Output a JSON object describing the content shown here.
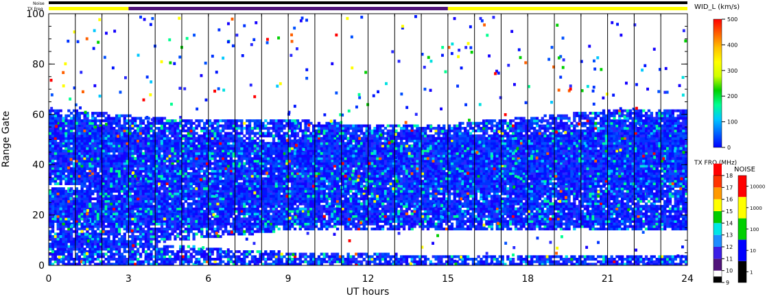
{
  "chart_data": {
    "type": "heatmap",
    "xlabel": "UT hours",
    "ylabel": "Range Gate",
    "xlim": [
      0,
      24
    ],
    "ylim": [
      0,
      100
    ],
    "x_ticks": [
      "0",
      "3",
      "6",
      "9",
      "12",
      "15",
      "18",
      "21",
      "24"
    ],
    "y_ticks": [
      "0",
      "20",
      "40",
      "60",
      "80",
      "100"
    ],
    "minor_ticks": {
      "x_step": 1,
      "y_step": 5
    },
    "vertical_marker_hours": [
      1,
      2,
      3,
      4,
      5,
      6,
      7,
      8,
      9,
      10,
      11,
      12,
      13,
      14,
      15,
      16,
      17,
      18,
      19,
      20,
      21,
      22,
      23
    ],
    "header": {
      "noise_label": "Noise",
      "txfreq_label": "TX Freq",
      "noise_color": "#000000",
      "txfreq_segments": [
        {
          "from": 0,
          "to": 3,
          "color": "#ffff00"
        },
        {
          "from": 3,
          "to": 15,
          "color": "#50137a"
        },
        {
          "from": 15,
          "to": 24,
          "color": "#ffff00"
        }
      ]
    },
    "backscatter_bands": [
      {
        "gate_low": [
          36,
          40,
          42,
          38,
          36,
          34,
          32,
          30,
          29,
          28,
          27,
          27
        ],
        "gate_high": [
          60,
          55,
          52,
          50,
          48,
          47,
          46,
          45,
          46,
          46,
          46,
          46
        ]
      },
      {
        "gate_low": [
          18,
          18,
          18,
          22,
          28,
          34,
          36,
          36,
          38,
          38,
          39,
          40
        ],
        "gate_high": [
          30,
          28,
          28,
          30,
          36,
          44,
          48,
          48,
          50,
          52,
          54,
          56
        ]
      },
      {
        "gate_low": [
          6,
          6,
          10,
          12,
          14,
          14,
          14,
          14,
          14,
          14,
          14,
          14
        ],
        "gate_high": [
          26,
          24,
          22,
          22,
          22,
          24,
          26,
          26,
          26,
          26,
          26,
          26
        ]
      },
      {
        "gate_low": [
          0,
          0,
          0,
          0,
          0,
          0,
          0,
          0,
          0,
          0,
          0,
          0
        ],
        "gate_high": [
          12,
          10,
          8,
          6,
          5,
          5,
          4,
          4,
          4,
          4,
          4,
          4
        ]
      },
      {
        "gate_low": [
          32,
          32,
          30,
          28,
          28,
          28,
          28,
          28,
          28,
          26,
          26,
          26
        ],
        "gate_high": [
          52,
          54,
          50,
          46,
          48,
          56,
          52,
          52,
          52,
          52,
          54,
          56
        ]
      },
      {
        "gate_low": [
          36,
          30,
          28,
          26,
          24,
          24,
          26,
          30,
          34,
          34,
          34,
          36
        ],
        "gate_high": [
          48,
          44,
          40,
          38,
          38,
          36,
          40,
          44,
          48,
          50,
          58,
          60
        ]
      },
      {
        "gate_low": [
          44,
          46,
          46,
          44,
          42,
          40,
          40,
          40,
          38,
          36,
          34,
          32
        ],
        "gate_high": [
          62,
          60,
          58,
          58,
          58,
          56,
          56,
          56,
          58,
          60,
          62,
          62
        ]
      },
      {
        "gate_low": [
          16,
          16,
          16,
          16,
          16,
          16,
          18,
          18,
          16,
          16,
          16,
          16
        ],
        "gate_high": [
          30,
          32,
          30,
          28,
          28,
          28,
          28,
          28,
          28,
          24,
          24,
          22
        ]
      }
    ],
    "color_scales": [
      {
        "title": "WID_L (km/s)",
        "ticks": [
          "0",
          "100",
          "200",
          "300",
          "400",
          "500"
        ],
        "range": [
          0,
          500
        ],
        "gradient": [
          "#0000ff",
          "#0064ff",
          "#00c8ff",
          "#00ff90",
          "#00d000",
          "#d0ff00",
          "#ffff00",
          "#ffc000",
          "#ff6000",
          "#ff0000"
        ]
      },
      {
        "title": "TX FRQ (MHz)",
        "ticks": [
          "9",
          "10",
          "11",
          "12",
          "13",
          "14",
          "15",
          "16",
          "17",
          "18"
        ],
        "colors": [
          "#000000",
          "#50137a",
          "#3c1ee6",
          "#1e8cff",
          "#00e6e6",
          "#00cc00",
          "#ffff00",
          "#ff9900",
          "#ff3300",
          "#ff0000"
        ]
      },
      {
        "title": "NOISE",
        "ticks": [
          "1",
          "10",
          "100",
          "1000",
          "10000"
        ],
        "colors": [
          "#000000",
          "#0000ff",
          "#00d000",
          "#ffff00",
          "#ff0000"
        ]
      }
    ]
  }
}
